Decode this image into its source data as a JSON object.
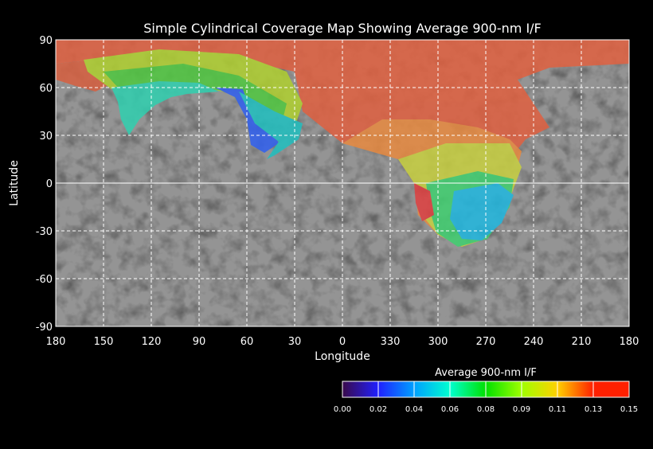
{
  "chart_data": {
    "type": "heatmap",
    "title": "Simple Cylindrical Coverage Map Showing Average 900-nm I/F",
    "xlabel": "Longitude",
    "ylabel": "Latitude",
    "x_ticks": [
      "180",
      "150",
      "120",
      "90",
      "60",
      "30",
      "0",
      "330",
      "300",
      "270",
      "240",
      "210",
      "180"
    ],
    "y_ticks": [
      "90",
      "60",
      "30",
      "0",
      "-30",
      "-60",
      "-90"
    ],
    "xlim": [
      180,
      -180
    ],
    "ylim": [
      -90,
      90
    ],
    "grid": true,
    "colorbar": {
      "title": "Average 900-nm I/F",
      "ticks": [
        "0.00",
        "0.02",
        "0.04",
        "0.06",
        "0.08",
        "0.09",
        "0.11",
        "0.13",
        "0.15"
      ],
      "range": [
        0.0,
        0.15
      ],
      "colors": [
        "#3a0a4a",
        "#2020ff",
        "#00a0ff",
        "#00ffd0",
        "#00e000",
        "#a0ff00",
        "#ffd000",
        "#ff2000"
      ],
      "placement": "bottom-right"
    }
  }
}
